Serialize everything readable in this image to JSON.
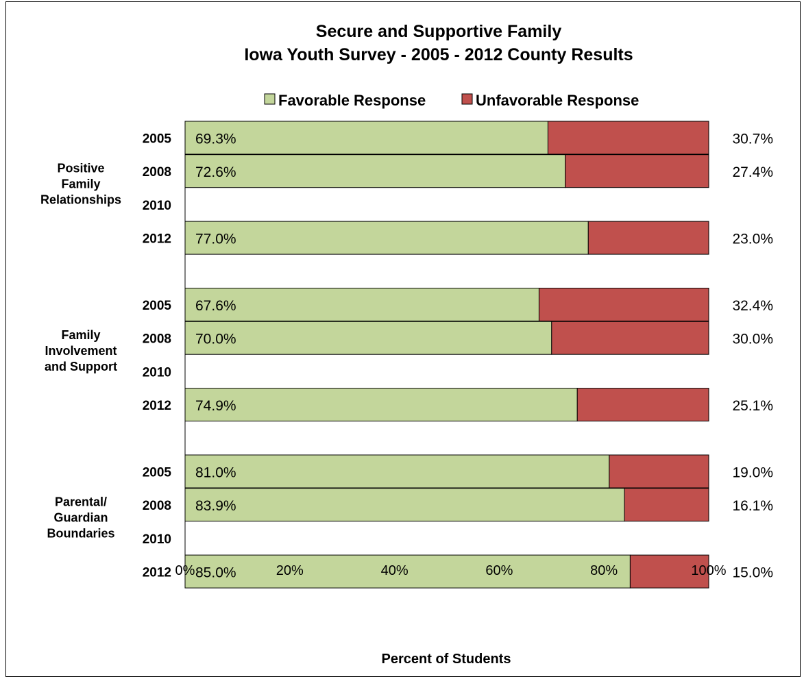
{
  "chart_data": {
    "type": "bar",
    "orientation": "horizontal",
    "stacked": true,
    "title_lines": [
      "Secure and Supportive Family",
      "Iowa Youth Survey - 2005 - 2012 County Results"
    ],
    "xlabel": "Percent of Students",
    "xlim": [
      0,
      100
    ],
    "x_ticks": [
      "0%",
      "20%",
      "40%",
      "60%",
      "80%",
      "100%"
    ],
    "legend_position": "top",
    "series": [
      {
        "name": "Favorable Response",
        "color": "#c3d69b"
      },
      {
        "name": "Unfavorable Response",
        "color": "#c0504d"
      }
    ],
    "groups": [
      {
        "label_lines": [
          "Positive",
          "Family",
          "Relationships"
        ],
        "rows": [
          {
            "year": "2005",
            "favorable": 69.3,
            "unfavorable": 30.7,
            "fav_label": "69.3%",
            "unfav_label": "30.7%"
          },
          {
            "year": "2008",
            "favorable": 72.6,
            "unfavorable": 27.4,
            "fav_label": "72.6%",
            "unfav_label": "27.4%"
          },
          {
            "year": "2010",
            "favorable": null,
            "unfavorable": null,
            "fav_label": "",
            "unfav_label": ""
          },
          {
            "year": "2012",
            "favorable": 77.0,
            "unfavorable": 23.0,
            "fav_label": "77.0%",
            "unfav_label": "23.0%"
          }
        ]
      },
      {
        "label_lines": [
          "Family",
          "Involvement",
          "and Support"
        ],
        "rows": [
          {
            "year": "2005",
            "favorable": 67.6,
            "unfavorable": 32.4,
            "fav_label": "67.6%",
            "unfav_label": "32.4%"
          },
          {
            "year": "2008",
            "favorable": 70.0,
            "unfavorable": 30.0,
            "fav_label": "70.0%",
            "unfav_label": "30.0%"
          },
          {
            "year": "2010",
            "favorable": null,
            "unfavorable": null,
            "fav_label": "",
            "unfav_label": ""
          },
          {
            "year": "2012",
            "favorable": 74.9,
            "unfavorable": 25.1,
            "fav_label": "74.9%",
            "unfav_label": "25.1%"
          }
        ]
      },
      {
        "label_lines": [
          "Parental/",
          "Guardian",
          "Boundaries"
        ],
        "rows": [
          {
            "year": "2005",
            "favorable": 81.0,
            "unfavorable": 19.0,
            "fav_label": "81.0%",
            "unfav_label": "19.0%"
          },
          {
            "year": "2008",
            "favorable": 83.9,
            "unfavorable": 16.1,
            "fav_label": "83.9%",
            "unfav_label": "16.1%"
          },
          {
            "year": "2010",
            "favorable": null,
            "unfavorable": null,
            "fav_label": "",
            "unfav_label": ""
          },
          {
            "year": "2012",
            "favorable": 85.0,
            "unfavorable": 15.0,
            "fav_label": "85.0%",
            "unfav_label": "15.0%"
          }
        ]
      }
    ]
  }
}
